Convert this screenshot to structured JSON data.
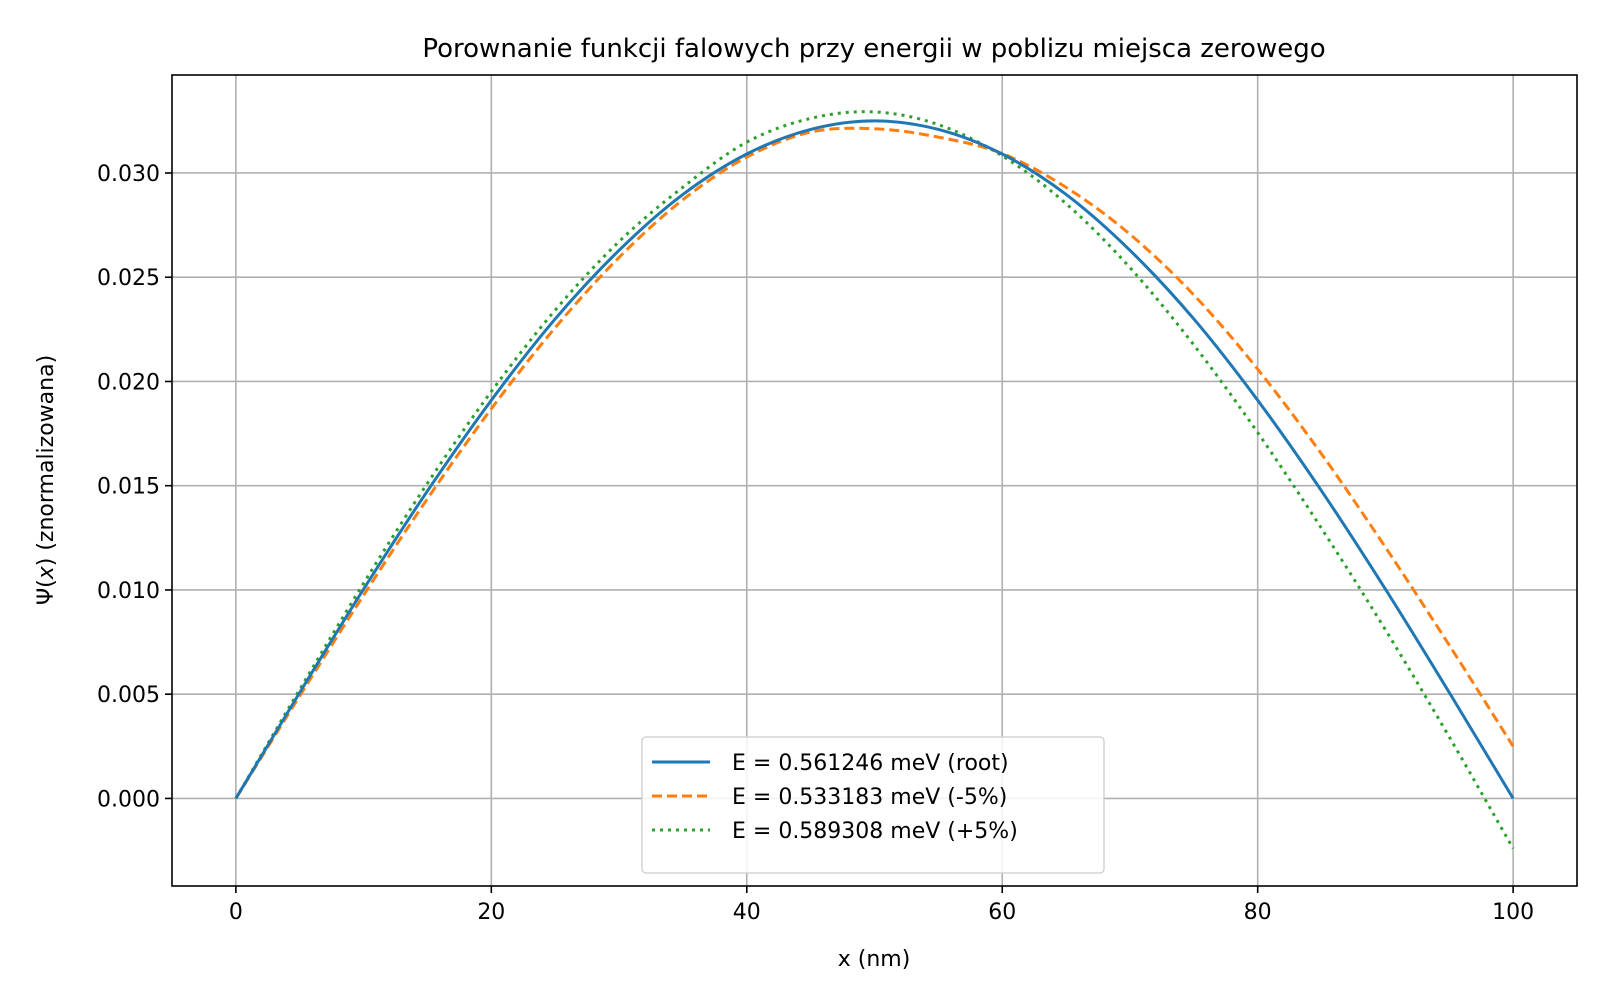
{
  "chart_data": {
    "type": "line",
    "title": "Porownanie funkcji falowych przy energii w poblizu miejsca zerowego",
    "xlabel": "x (nm)",
    "ylabel_symbol": "Ψ(",
    "ylabel_var": "x",
    "ylabel_rest": ") (znormalizowana)",
    "xlim": [
      -5,
      105
    ],
    "ylim": [
      -0.0042,
      0.0347
    ],
    "xticks": [
      0,
      20,
      40,
      60,
      80,
      100
    ],
    "xtick_labels": [
      "0",
      "20",
      "40",
      "60",
      "80",
      "100"
    ],
    "yticks": [
      0.0,
      0.005,
      0.01,
      0.015,
      0.02,
      0.025,
      0.03
    ],
    "ytick_labels": [
      "0.000",
      "0.005",
      "0.010",
      "0.015",
      "0.020",
      "0.025",
      "0.030"
    ],
    "grid": true,
    "legend_position": "lower center",
    "x": [
      0,
      5,
      10,
      15,
      20,
      25,
      30,
      35,
      40,
      45,
      50,
      55,
      60,
      65,
      70,
      75,
      80,
      85,
      90,
      95,
      100
    ],
    "series": [
      {
        "name": "E = 0.561246 meV (root)",
        "color": "#1f77b4",
        "dash": "solid",
        "values": [
          0.0,
          0.00508,
          0.01004,
          0.01475,
          0.0191,
          0.023,
          0.02629,
          0.02897,
          0.03091,
          0.03209,
          0.0325,
          0.03209,
          0.03091,
          0.02897,
          0.02629,
          0.023,
          0.0191,
          0.01475,
          0.01004,
          0.00508,
          0.0
        ]
      },
      {
        "name": "E = 0.533183 meV (-5%)",
        "color": "#ff7f0e",
        "dash": "dashed",
        "values": [
          0.0,
          0.00492,
          0.00975,
          0.01438,
          0.01869,
          0.02258,
          0.02595,
          0.02872,
          0.03076,
          0.03196,
          0.03212,
          0.03172,
          0.03093,
          0.02931,
          0.02706,
          0.02415,
          0.02059,
          0.01652,
          0.01205,
          0.00735,
          0.0025
        ]
      },
      {
        "name": "E = 0.589308 meV (+5%)",
        "color": "#2ca02c",
        "dash": "dotted",
        "values": [
          0.0,
          0.00523,
          0.01032,
          0.01512,
          0.01952,
          0.02342,
          0.02671,
          0.02932,
          0.03148,
          0.03262,
          0.03293,
          0.03232,
          0.03082,
          0.02853,
          0.02546,
          0.02175,
          0.01755,
          0.01295,
          0.00809,
          0.00295,
          -0.0024
        ]
      }
    ]
  }
}
